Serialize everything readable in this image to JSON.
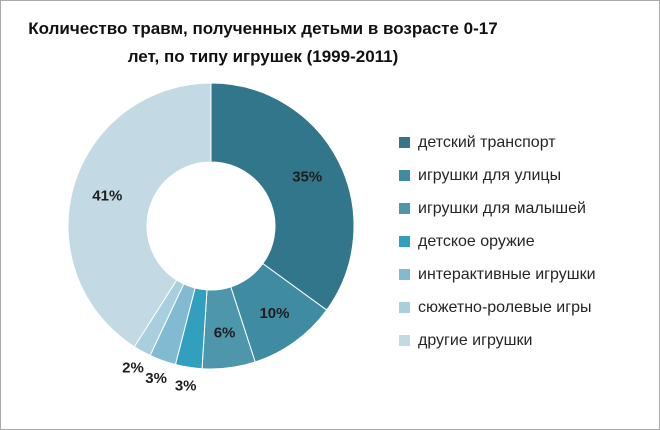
{
  "title": {
    "line1": "Количество травм, полученных детьми в возрасте 0-17",
    "line2": "лет, по типу игрушек (1999-2011)"
  },
  "chart_data": {
    "type": "pie",
    "subtype": "donut",
    "title": "Количество травм, полученных детьми в возрасте 0-17 лет, по типу игрушек (1999-2011)",
    "unit": "%",
    "categories": [
      "детский транспорт",
      "игрушки для улицы",
      "игрушки для малышей",
      "детское оружие",
      "интерактивные игрушки",
      "сюжетно-ролевые игры",
      "другие игрушки"
    ],
    "values": [
      35,
      10,
      6,
      3,
      3,
      2,
      41
    ],
    "data_labels": [
      "35%",
      "10%",
      "6%",
      "3%",
      "3%",
      "2%",
      "41%"
    ],
    "colors": [
      "#31768B",
      "#3F8BA1",
      "#4E96AC",
      "#339FBF",
      "#82BAD1",
      "#A9CEDD",
      "#C3D9E3"
    ],
    "start_angle_deg": 0,
    "direction": "clockwise",
    "legend_position": "right",
    "label_color": "#1E1E1E",
    "background": "#FFFFFF"
  }
}
